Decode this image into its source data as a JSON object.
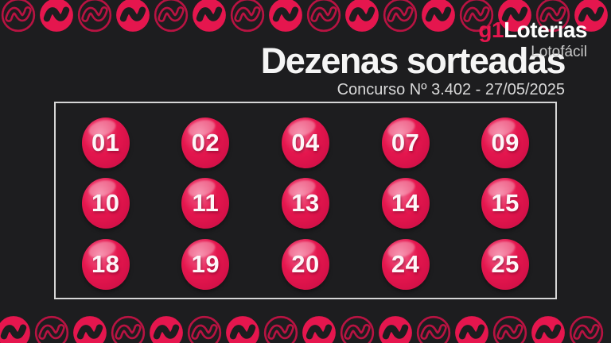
{
  "brand": {
    "g1": "g1",
    "name": "Loterias",
    "product": "Lotofácil"
  },
  "header": {
    "title": "Dezenas sorteadas",
    "subtitle": "Concurso Nº 3.402 - 27/05/2025"
  },
  "results": {
    "numbers": [
      "01",
      "02",
      "04",
      "07",
      "09",
      "10",
      "11",
      "13",
      "14",
      "15",
      "18",
      "19",
      "20",
      "24",
      "25"
    ]
  },
  "decor": {
    "icon": "money-wave-icon",
    "icons_per_row": 16,
    "top_first_style": "outline",
    "bottom_first_style": "filled"
  },
  "colors": {
    "accent": "#e5164e",
    "accent_dim": "#b81342",
    "background": "#1d1d1f",
    "box_border": "#d6d6d6",
    "title": "#f5f5f5",
    "subtitle": "#d9d9d9",
    "product_label": "#c9c9c9",
    "ball_main": "#e5164e",
    "ball_highlight": "#f4668f"
  }
}
